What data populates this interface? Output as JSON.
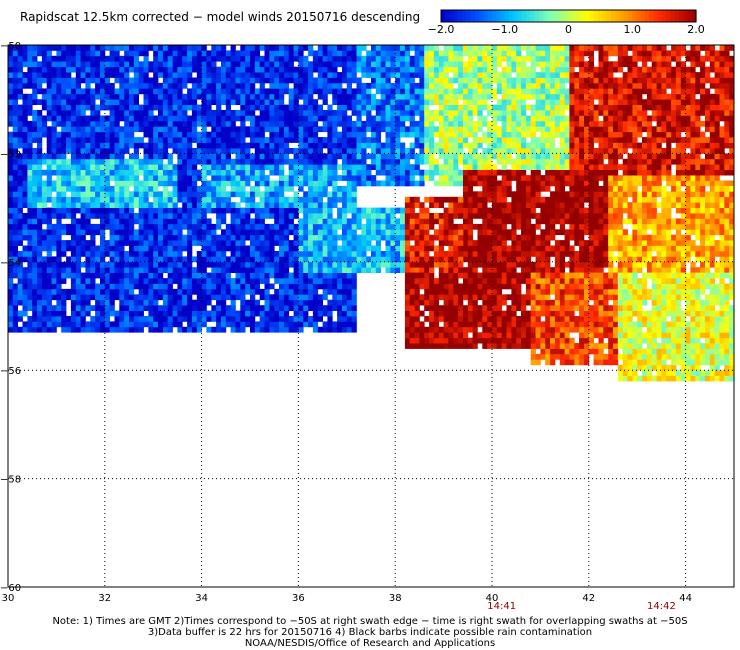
{
  "chart_data": {
    "type": "heatmap",
    "title": "Rapidscat 12.5km corrected − model winds 20150716 descending",
    "x_ticks": [
      "30",
      "32",
      "34",
      "36",
      "38",
      "40",
      "42",
      "44"
    ],
    "x_tick_values": [
      30,
      32,
      34,
      36,
      38,
      40,
      42,
      44
    ],
    "y_ticks": [
      "−50",
      "−52",
      "−54",
      "−56",
      "−58",
      "−60"
    ],
    "y_tick_values": [
      -50,
      -52,
      -54,
      -56,
      -58,
      -60
    ],
    "xlim": [
      30,
      45
    ],
    "ylim": [
      -60,
      -50
    ],
    "grid": true,
    "colorbar": {
      "ticks": [
        "−2.0",
        "−1.0",
        "0",
        "1.0",
        "2.0"
      ],
      "tick_values": [
        -2,
        -1,
        0,
        1,
        2
      ],
      "range": [
        -2,
        2
      ],
      "colors": [
        "#0000c8",
        "#0050ff",
        "#00c8ff",
        "#80ffb4",
        "#ffff00",
        "#ffa000",
        "#ff2800",
        "#960000"
      ]
    },
    "time_labels": [
      {
        "x": 40.2,
        "text": "14:41"
      },
      {
        "x": 43.5,
        "text": "14:42"
      }
    ],
    "regions": [
      {
        "x": [
          30.0,
          37.2
        ],
        "y": [
          -55.3,
          -50.0
        ],
        "value": -1.7
      },
      {
        "x": [
          30.4,
          33.5
        ],
        "y": [
          -53.0,
          -52.1
        ],
        "value": -0.8
      },
      {
        "x": [
          34.0,
          37.2
        ],
        "y": [
          -53.0,
          -52.2
        ],
        "value": -1.0
      },
      {
        "x": [
          36.0,
          38.6
        ],
        "y": [
          -54.2,
          -53.0
        ],
        "value": -0.9
      },
      {
        "x": [
          37.2,
          39.6
        ],
        "y": [
          -52.6,
          -50.0
        ],
        "value": -1.3
      },
      {
        "x": [
          38.6,
          41.6
        ],
        "y": [
          -52.6,
          -50.0
        ],
        "value": -0.1
      },
      {
        "x": [
          41.6,
          45.0
        ],
        "y": [
          -52.6,
          -50.0
        ],
        "value": 1.7
      },
      {
        "x": [
          39.4,
          42.4
        ],
        "y": [
          -54.2,
          -52.3
        ],
        "value": 2.0
      },
      {
        "x": [
          38.2,
          39.4
        ],
        "y": [
          -54.5,
          -52.8
        ],
        "value": 1.6
      },
      {
        "x": [
          42.4,
          45.0
        ],
        "y": [
          -54.2,
          -52.4
        ],
        "value": 0.8
      },
      {
        "x": [
          38.2,
          40.8
        ],
        "y": [
          -55.6,
          -54.2
        ],
        "value": 2.0
      },
      {
        "x": [
          40.8,
          42.6
        ],
        "y": [
          -55.9,
          -54.2
        ],
        "value": 1.3
      },
      {
        "x": [
          42.6,
          45.0
        ],
        "y": [
          -56.2,
          -54.2
        ],
        "value": 0.2
      }
    ]
  },
  "footer": {
    "line1": "Note: 1) Times are GMT 2)Times correspond to −50S at right swath edge − time is right swath for overlapping swaths at −50S",
    "line2": "3)Data buffer is 22 hrs for 20150716 4) Black barbs indicate possible rain contamination",
    "line3": "NOAA/NESDIS/Office of Research and Applications"
  }
}
